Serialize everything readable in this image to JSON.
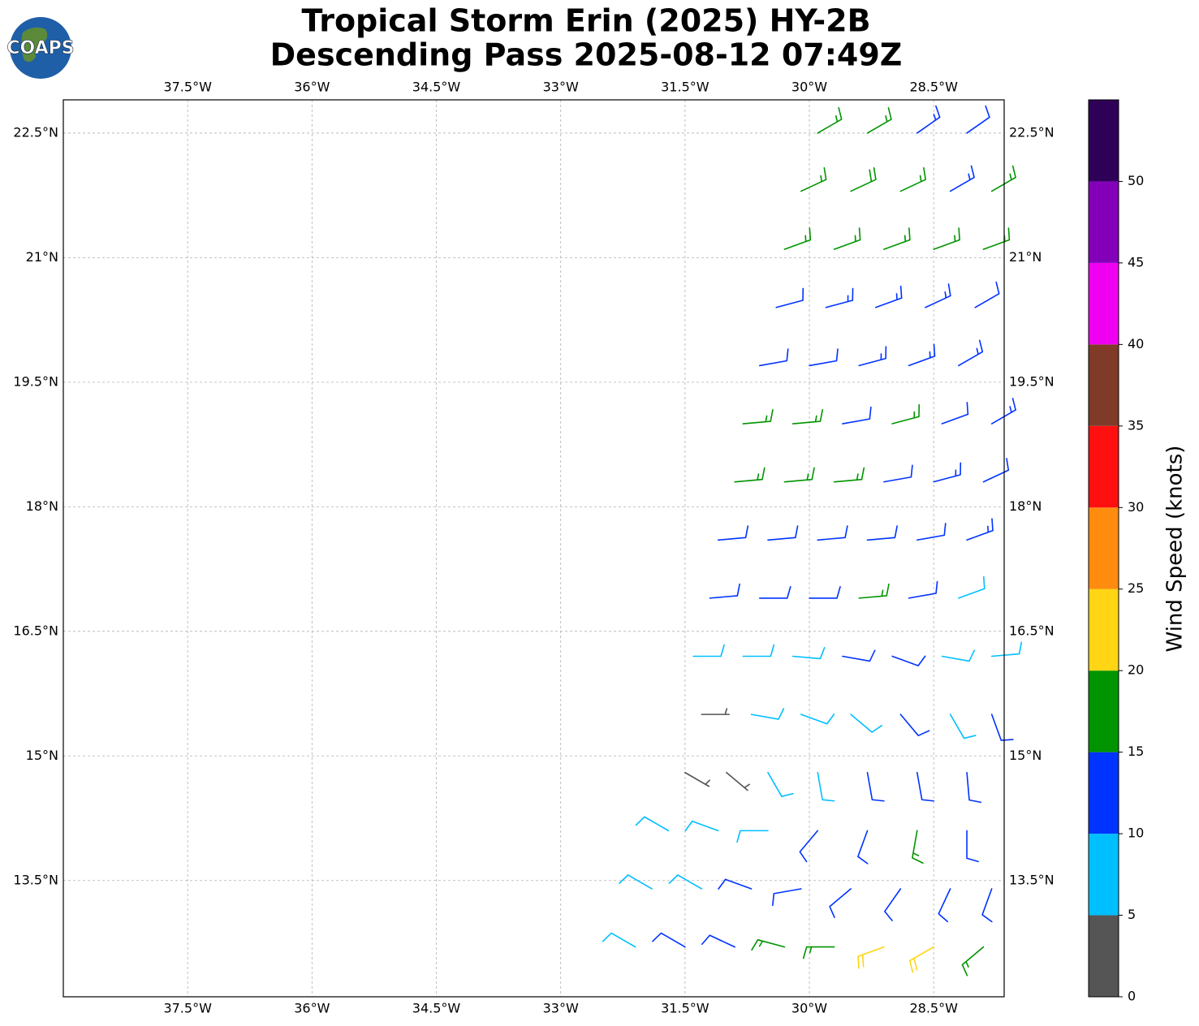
{
  "chart_data": {
    "type": "barbs",
    "title": "Tropical Storm Erin (2025) HY-2B",
    "subtitle": "Descending Pass 2025-08-12 07:49Z",
    "logo": "COAPS",
    "xlim": [
      -39,
      -27.65
    ],
    "ylim": [
      12.1,
      22.9
    ],
    "xticks": [
      {
        "value": -37.5,
        "label": "37.5°W"
      },
      {
        "value": -36,
        "label": "36°W"
      },
      {
        "value": -34.5,
        "label": "34.5°W"
      },
      {
        "value": -33,
        "label": "33°W"
      },
      {
        "value": -31.5,
        "label": "31.5°W"
      },
      {
        "value": -30,
        "label": "30°W"
      },
      {
        "value": -28.5,
        "label": "28.5°W"
      }
    ],
    "yticks": [
      {
        "value": 13.5,
        "label": "13.5°N"
      },
      {
        "value": 15,
        "label": "15°N"
      },
      {
        "value": 16.5,
        "label": "16.5°N"
      },
      {
        "value": 18,
        "label": "18°N"
      },
      {
        "value": 19.5,
        "label": "19.5°N"
      },
      {
        "value": 21,
        "label": "21°N"
      },
      {
        "value": 22.5,
        "label": "22.5°N"
      }
    ],
    "grid": true,
    "colorbar": {
      "label": "Wind Speed (knots)",
      "clim": [
        0,
        55
      ],
      "ticks": [
        0,
        5,
        10,
        15,
        20,
        25,
        30,
        35,
        40,
        45,
        50
      ],
      "colors": [
        "#555555",
        "#00bfff",
        "#0033ff",
        "#009400",
        "#ffd514",
        "#ff8c0f",
        "#ff1010",
        "#7f3b28",
        "#f000f0",
        "#8400b8",
        "#2e0058"
      ]
    },
    "barbs": {
      "rows": [
        {
          "lat": 22.5,
          "lon": [
            -29.9,
            -29.3,
            -28.7,
            -28.1
          ],
          "speed": [
            17,
            17,
            13,
            12
          ],
          "direction": [
            60,
            60,
            55,
            55
          ]
        },
        {
          "lat": 21.8,
          "lon": [
            -30.1,
            -29.5,
            -28.9,
            -28.3,
            -27.8
          ],
          "speed": [
            17,
            18,
            17,
            13,
            17
          ],
          "direction": [
            65,
            65,
            65,
            60,
            60
          ]
        },
        {
          "lat": 21.1,
          "lon": [
            -30.3,
            -29.7,
            -29.1,
            -28.5,
            -27.9
          ],
          "speed": [
            17,
            17,
            17,
            17,
            17
          ],
          "direction": [
            70,
            70,
            70,
            70,
            70
          ]
        },
        {
          "lat": 20.4,
          "lon": [
            -30.4,
            -29.8,
            -29.2,
            -28.6,
            -28.0
          ],
          "speed": [
            12,
            13,
            13,
            13,
            12
          ],
          "direction": [
            75,
            75,
            70,
            65,
            60
          ]
        },
        {
          "lat": 19.7,
          "lon": [
            -30.6,
            -30.0,
            -29.4,
            -28.8,
            -28.2
          ],
          "speed": [
            12,
            12,
            13,
            13,
            13
          ],
          "direction": [
            80,
            80,
            75,
            70,
            60
          ]
        },
        {
          "lat": 19.0,
          "lon": [
            -30.8,
            -30.2,
            -29.6,
            -29.0,
            -28.4,
            -27.8
          ],
          "speed": [
            17,
            17,
            12,
            17,
            12,
            13
          ],
          "direction": [
            85,
            85,
            80,
            75,
            70,
            60
          ]
        },
        {
          "lat": 18.3,
          "lon": [
            -30.9,
            -30.3,
            -29.7,
            -29.1,
            -28.5,
            -27.9
          ],
          "speed": [
            17,
            17,
            17,
            12,
            13,
            12
          ],
          "direction": [
            85,
            85,
            85,
            80,
            75,
            65
          ]
        },
        {
          "lat": 17.6,
          "lon": [
            -31.1,
            -30.5,
            -29.9,
            -29.3,
            -28.7,
            -28.1
          ],
          "speed": [
            12,
            12,
            12,
            12,
            12,
            13
          ],
          "direction": [
            85,
            85,
            85,
            85,
            80,
            70
          ]
        },
        {
          "lat": 16.9,
          "lon": [
            -31.2,
            -30.6,
            -30.0,
            -29.4,
            -28.8,
            -28.2
          ],
          "speed": [
            12,
            12,
            12,
            17,
            12,
            8
          ],
          "direction": [
            85,
            90,
            90,
            85,
            80,
            70
          ]
        },
        {
          "lat": 16.2,
          "lon": [
            -31.4,
            -30.8,
            -30.2,
            -29.6,
            -29.0,
            -28.4,
            -27.8
          ],
          "speed": [
            8,
            8,
            8,
            12,
            12,
            8,
            8
          ],
          "direction": [
            90,
            90,
            95,
            100,
            110,
            100,
            85
          ]
        },
        {
          "lat": 15.5,
          "lon": [
            -31.3,
            -30.7,
            -30.1,
            -29.5,
            -28.9,
            -28.3,
            -27.8
          ],
          "speed": [
            3,
            8,
            8,
            8,
            12,
            8,
            12
          ],
          "direction": [
            90,
            100,
            110,
            130,
            140,
            150,
            160
          ]
        },
        {
          "lat": 14.8,
          "lon": [
            -31.5,
            -31.0,
            -30.5,
            -29.9,
            -29.3,
            -28.7,
            -28.1
          ],
          "speed": [
            3,
            3,
            8,
            8,
            12,
            12,
            12
          ],
          "direction": [
            120,
            130,
            150,
            170,
            170,
            170,
            175
          ]
        },
        {
          "lat": 14.1,
          "lon": [
            -31.7,
            -31.1,
            -30.5,
            -29.9,
            -29.3,
            -28.7,
            -28.1
          ],
          "speed": [
            8,
            8,
            8,
            12,
            12,
            17,
            12
          ],
          "direction": [
            300,
            290,
            270,
            220,
            200,
            190,
            180
          ]
        },
        {
          "lat": 13.4,
          "lon": [
            -31.9,
            -31.3,
            -30.7,
            -30.1,
            -29.5,
            -28.9,
            -28.3,
            -27.8
          ],
          "speed": [
            8,
            8,
            12,
            12,
            12,
            12,
            12,
            12
          ],
          "direction": [
            300,
            300,
            290,
            260,
            230,
            215,
            205,
            200
          ]
        },
        {
          "lat": 12.7,
          "lon": [
            -32.1,
            -31.5,
            -30.9,
            -30.3,
            -29.7,
            -29.1,
            -28.5,
            -27.9
          ],
          "speed": [
            8,
            12,
            12,
            17,
            17,
            22,
            22,
            17
          ],
          "direction": [
            300,
            300,
            295,
            285,
            270,
            250,
            240,
            230
          ]
        }
      ]
    }
  }
}
